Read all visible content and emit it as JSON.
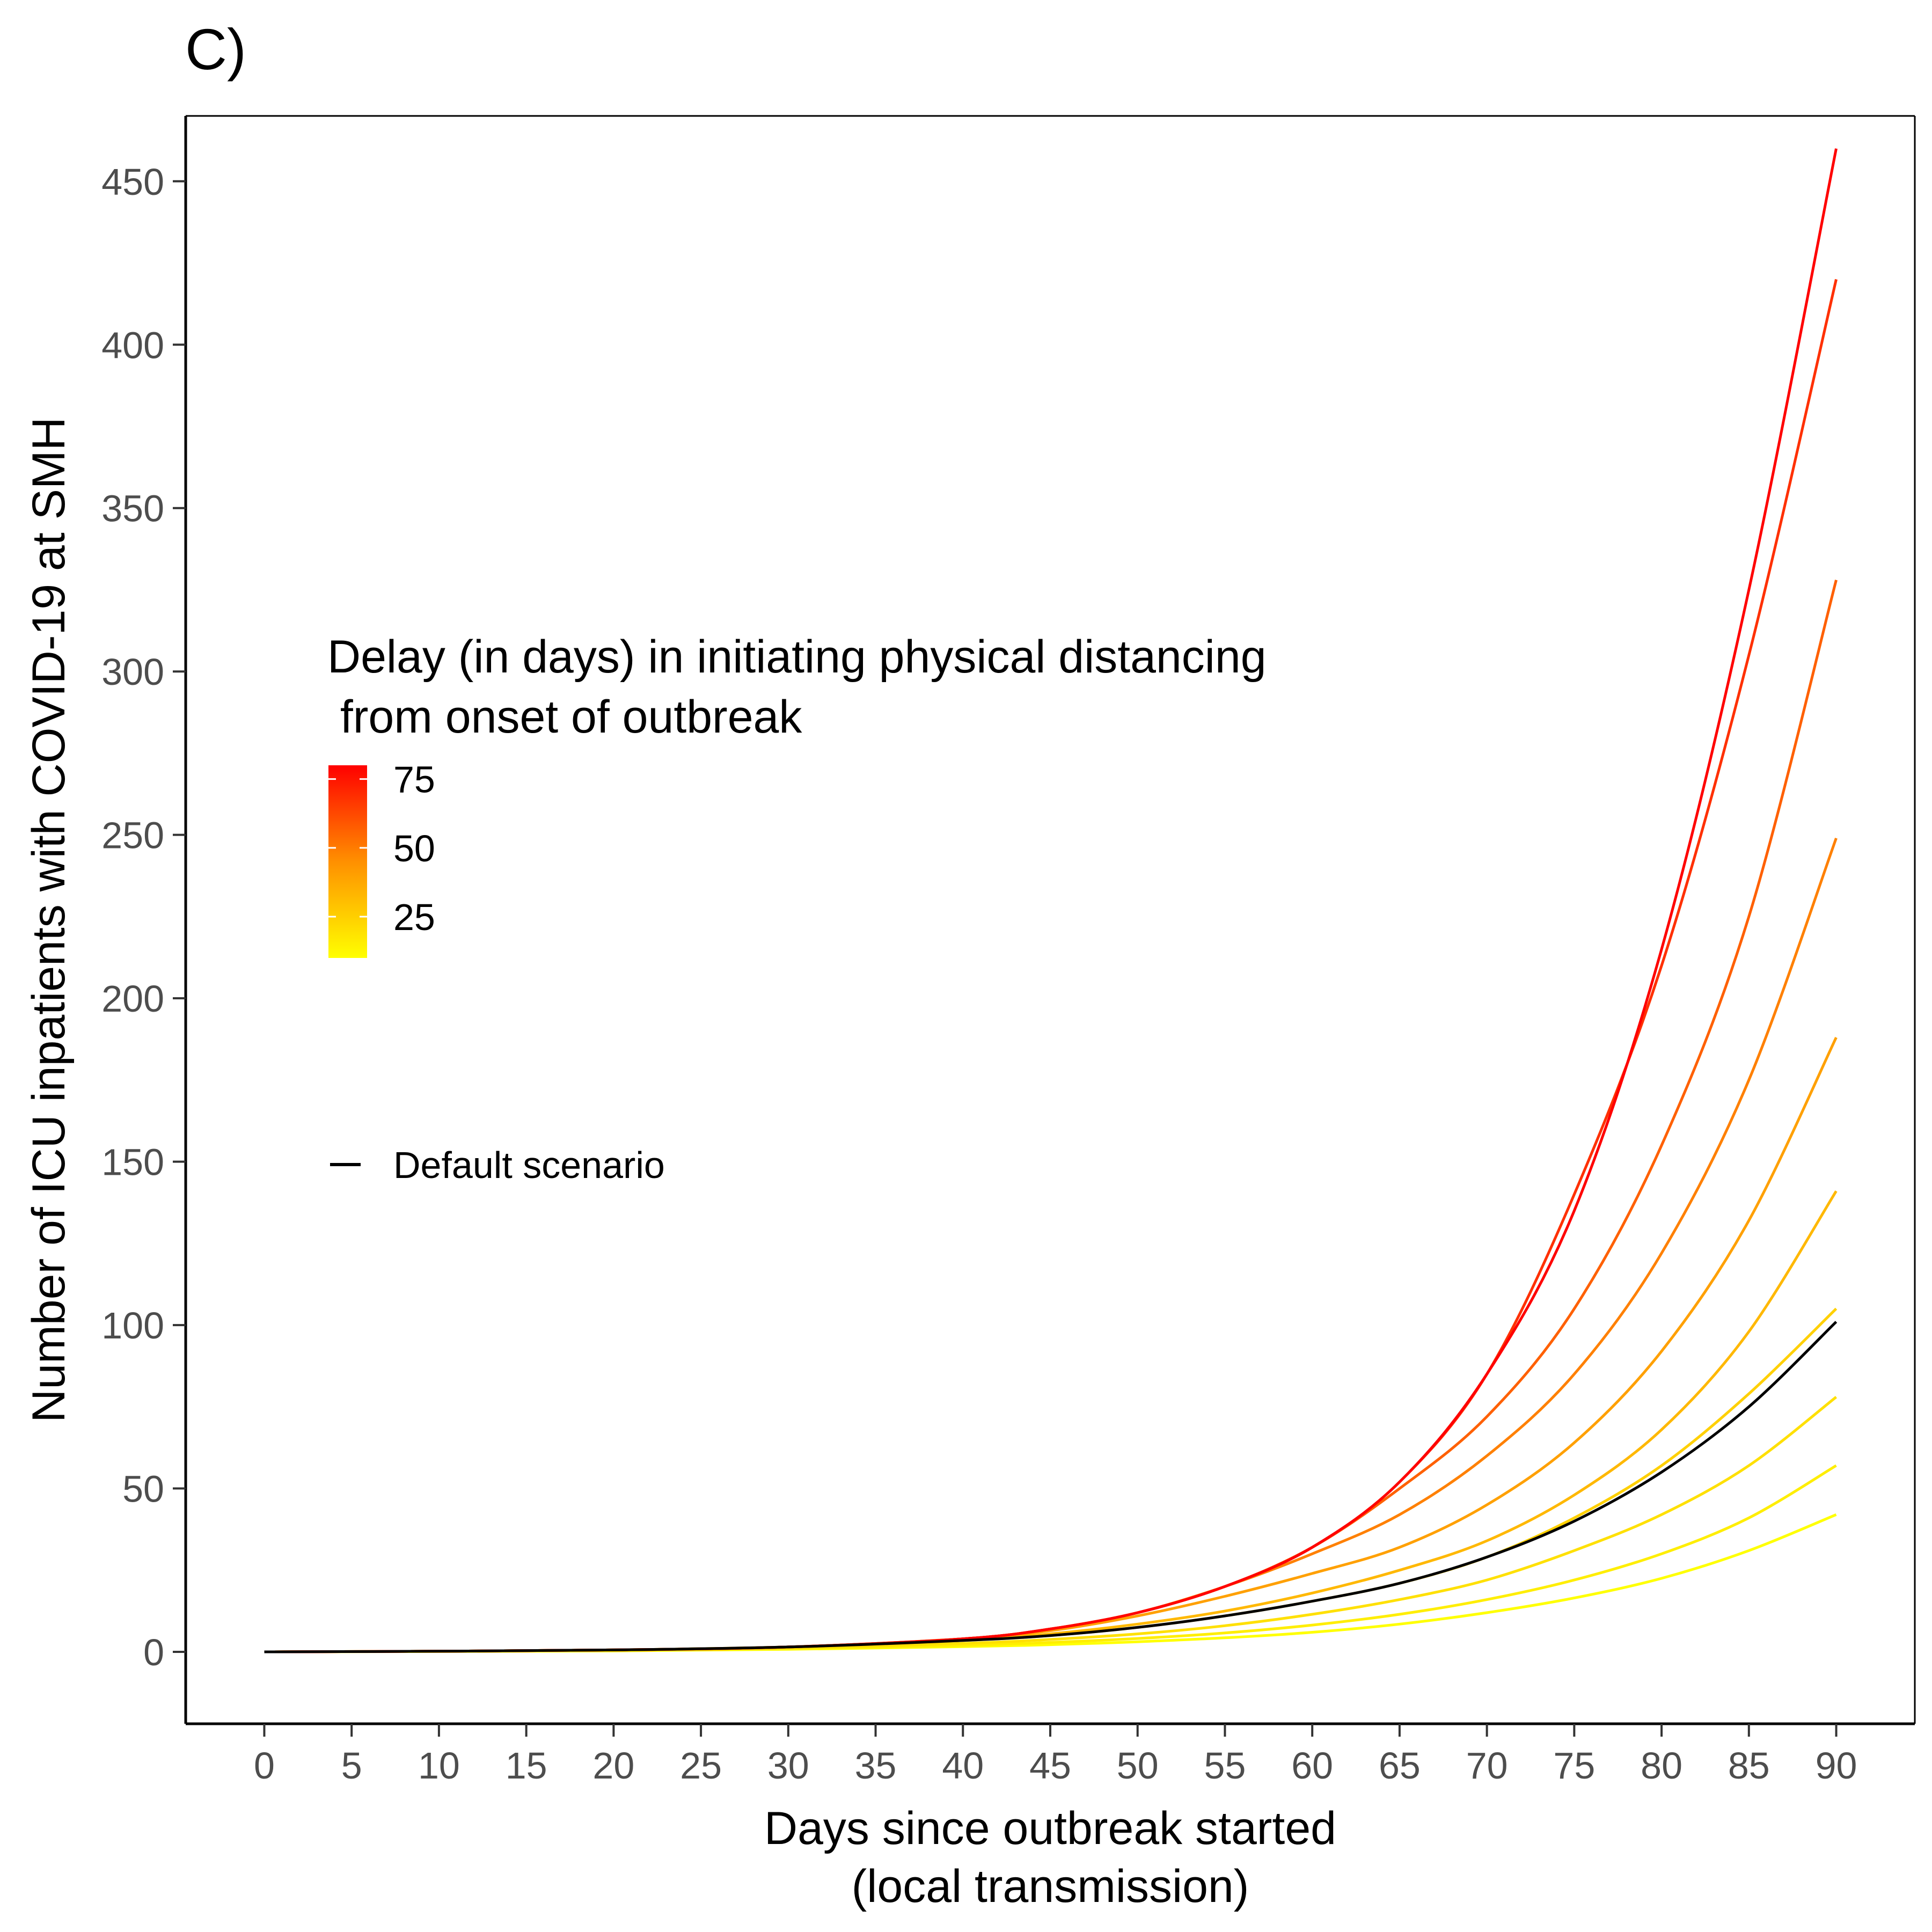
{
  "panel_label": "C)",
  "chart_data": {
    "type": "line",
    "xlabel": [
      "Days since outbreak started",
      "(local transmission)"
    ],
    "ylabel": "Number of ICU inpatients with COVID-19 at SMH",
    "xlim": [
      -4.5,
      94.5
    ],
    "ylim": [
      -22,
      470
    ],
    "x_ticks": [
      0,
      5,
      10,
      15,
      20,
      25,
      30,
      35,
      40,
      45,
      50,
      55,
      60,
      65,
      70,
      75,
      80,
      85,
      90
    ],
    "y_ticks": [
      0,
      50,
      100,
      150,
      200,
      250,
      300,
      350,
      400,
      450
    ],
    "grid": false,
    "legend": {
      "placement": "left-center",
      "colorbar_title": [
        "Delay (in days) in initiating physical distancing",
        " from onset of outbreak"
      ],
      "colorbar_labels": [
        "75",
        "50",
        "25"
      ],
      "colorbar_range": [
        10,
        80
      ],
      "colorbar_colors": [
        "#ffff00",
        "#ff0000"
      ],
      "default_label": "Default scenario"
    },
    "series_style": {
      "line_width": 5,
      "default_color": "#000000"
    },
    "series": [
      {
        "delay": 80,
        "color": "#ff0000",
        "x": [
          0,
          10,
          20,
          30,
          40,
          45,
          50,
          55,
          60,
          65,
          70,
          75,
          80,
          85,
          90
        ],
        "y": [
          0,
          0.2,
          0.6,
          1.5,
          4,
          7,
          12,
          20,
          32,
          52,
          85,
          135,
          215,
          325,
          460
        ]
      },
      {
        "delay": 70,
        "color": "#ff3000",
        "x": [
          0,
          10,
          20,
          30,
          40,
          45,
          50,
          55,
          60,
          65,
          70,
          75,
          80,
          85,
          90
        ],
        "y": [
          0,
          0.2,
          0.6,
          1.5,
          4,
          7,
          12,
          20,
          32,
          52,
          85,
          140,
          210,
          305,
          420
        ]
      },
      {
        "delay": 60,
        "color": "#ff6000",
        "x": [
          0,
          10,
          20,
          30,
          40,
          45,
          50,
          55,
          60,
          65,
          70,
          75,
          80,
          85,
          90
        ],
        "y": [
          0,
          0.2,
          0.6,
          1.5,
          4,
          7,
          12,
          20,
          32,
          50,
          72,
          105,
          155,
          225,
          328
        ]
      },
      {
        "delay": 50,
        "color": "#ff8000",
        "x": [
          0,
          10,
          20,
          30,
          40,
          45,
          50,
          55,
          60,
          65,
          70,
          75,
          80,
          85,
          90
        ],
        "y": [
          0,
          0.2,
          0.6,
          1.5,
          4,
          7,
          12,
          20,
          30,
          42,
          60,
          85,
          122,
          175,
          249
        ]
      },
      {
        "delay": 40,
        "color": "#ffa000",
        "x": [
          0,
          10,
          20,
          30,
          40,
          45,
          50,
          55,
          60,
          65,
          70,
          75,
          80,
          85,
          90
        ],
        "y": [
          0,
          0.2,
          0.6,
          1.5,
          4,
          6.5,
          11,
          17,
          24,
          32,
          45,
          64,
          92,
          132,
          188
        ]
      },
      {
        "delay": 30,
        "color": "#ffb800",
        "x": [
          0,
          10,
          20,
          30,
          40,
          45,
          50,
          55,
          60,
          65,
          70,
          75,
          80,
          85,
          90
        ],
        "y": [
          0,
          0.2,
          0.6,
          1.5,
          3.5,
          5.5,
          8.5,
          12.5,
          18,
          25,
          34,
          48,
          68,
          98,
          141
        ]
      },
      {
        "delay": 20,
        "color": "#ffd000",
        "x": [
          0,
          10,
          20,
          30,
          40,
          45,
          50,
          55,
          60,
          65,
          70,
          75,
          80,
          85,
          90
        ],
        "y": [
          0,
          0.2,
          0.6,
          1.5,
          3.5,
          5,
          7.5,
          11,
          15.5,
          21,
          29,
          41,
          57,
          79,
          105
        ]
      },
      {
        "delay": 15,
        "color": "#ffe000",
        "x": [
          0,
          10,
          20,
          30,
          40,
          45,
          50,
          55,
          60,
          65,
          70,
          75,
          80,
          85,
          90
        ],
        "y": [
          0,
          0.2,
          0.5,
          1.2,
          2.6,
          3.8,
          5.5,
          8,
          11.5,
          16,
          22,
          31,
          42,
          57,
          78
        ]
      },
      {
        "delay": 12,
        "color": "#ffee00",
        "x": [
          0,
          10,
          20,
          30,
          40,
          45,
          50,
          55,
          60,
          65,
          70,
          75,
          80,
          85,
          90
        ],
        "y": [
          0,
          0.15,
          0.4,
          1,
          2,
          2.9,
          4.1,
          5.8,
          8.2,
          11.5,
          16,
          22,
          30,
          41,
          57
        ]
      },
      {
        "delay": 10,
        "color": "#ffff00",
        "x": [
          0,
          10,
          20,
          30,
          40,
          45,
          50,
          55,
          60,
          65,
          70,
          75,
          80,
          85,
          90
        ],
        "y": [
          0,
          0.1,
          0.3,
          0.8,
          1.6,
          2.2,
          3.1,
          4.3,
          6,
          8.5,
          12,
          16.5,
          22.5,
          31,
          42
        ]
      },
      {
        "delay": "default",
        "color": "#000000",
        "x": [
          0,
          10,
          20,
          30,
          40,
          45,
          50,
          55,
          60,
          65,
          70,
          75,
          80,
          85,
          90
        ],
        "y": [
          0,
          0.2,
          0.6,
          1.5,
          3.5,
          5,
          7.5,
          11,
          15.5,
          21,
          29,
          40,
          55,
          75,
          101
        ]
      }
    ]
  }
}
